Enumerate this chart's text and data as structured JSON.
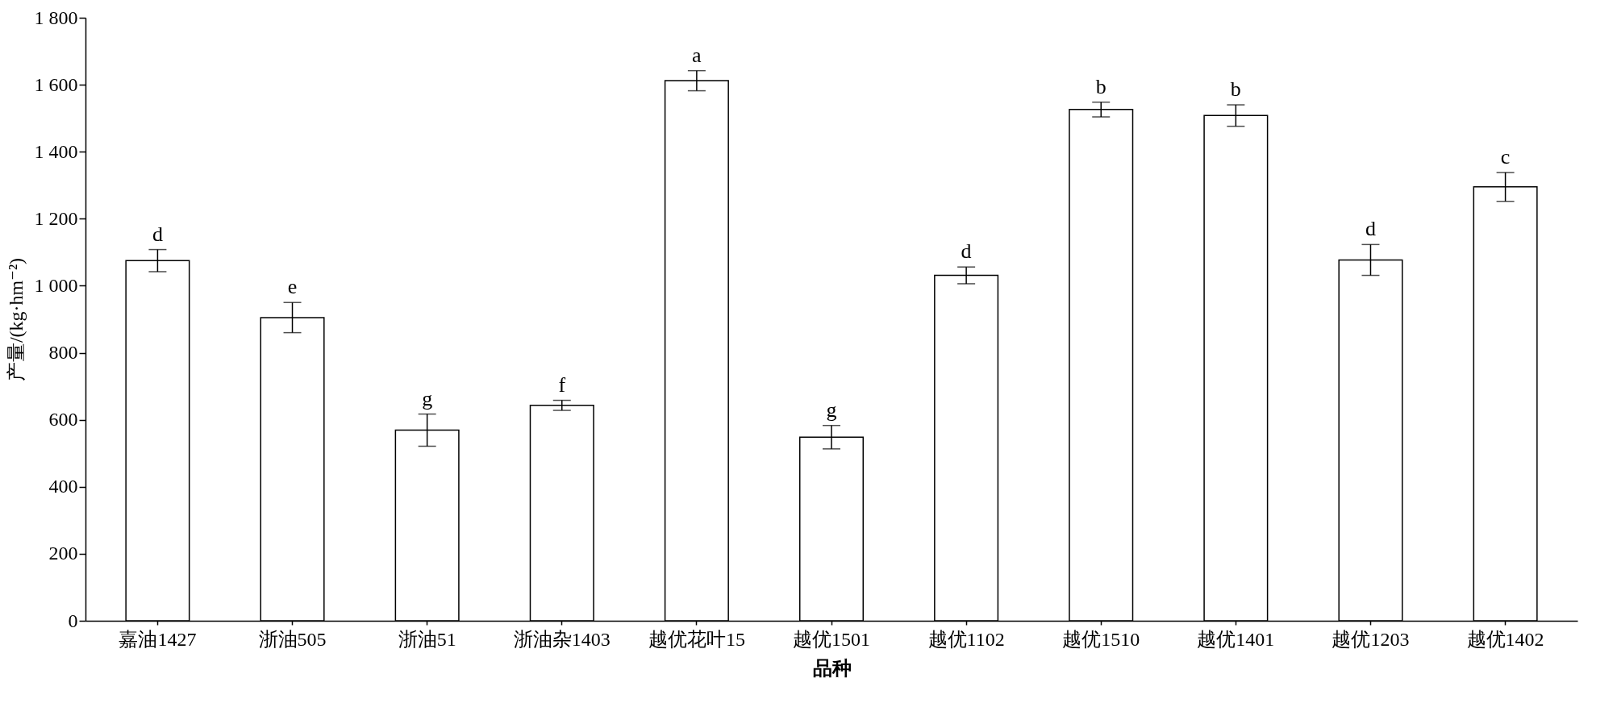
{
  "chart_data": {
    "type": "bar",
    "xlabel": "品种",
    "ylabel": "产量/(kg·hm⁻²)",
    "categories": [
      "嘉油1427",
      "浙油505",
      "浙油51",
      "浙油杂1403",
      "越优花叶15",
      "越优1501",
      "越优1102",
      "越优1510",
      "越优1401",
      "越优1203",
      "越优1402"
    ],
    "values": [
      1075,
      905,
      569,
      643,
      1612,
      548,
      1031,
      1526,
      1508,
      1077,
      1295
    ],
    "errors": [
      33,
      45,
      48,
      15,
      30,
      35,
      25,
      22,
      32,
      46,
      43
    ],
    "color": "#ffffff",
    "ylim": [
      0,
      1800
    ],
    "yticks": [
      0,
      200,
      400,
      600,
      800,
      {
        "value": 1000,
        "label": "1 000"
      },
      {
        "value": 1200,
        "label": "1 200"
      },
      {
        "value": 1400,
        "label": "1 400"
      },
      {
        "value": 1600,
        "label": "1 600"
      },
      {
        "value": 1800,
        "label": "1 800"
      }
    ],
    "grid": false,
    "annotations": [
      {
        "text": "d",
        "x": "嘉油1427",
        "y": 1108
      },
      {
        "text": "e",
        "x": "浙油505",
        "y": 950
      },
      {
        "text": "g",
        "x": "浙油51",
        "y": 617
      },
      {
        "text": "f",
        "x": "浙油杂1403",
        "y": 658
      },
      {
        "text": "a",
        "x": "越优花叶15",
        "y": 1642
      },
      {
        "text": "g",
        "x": "越优1501",
        "y": 583
      },
      {
        "text": "d",
        "x": "越优1102",
        "y": 1056
      },
      {
        "text": "b",
        "x": "越优1510",
        "y": 1548
      },
      {
        "text": "b",
        "x": "越优1401",
        "y": 1540
      },
      {
        "text": "d",
        "x": "越优1203",
        "y": 1123
      },
      {
        "text": "c",
        "x": "越优1402",
        "y": 1338
      }
    ]
  }
}
